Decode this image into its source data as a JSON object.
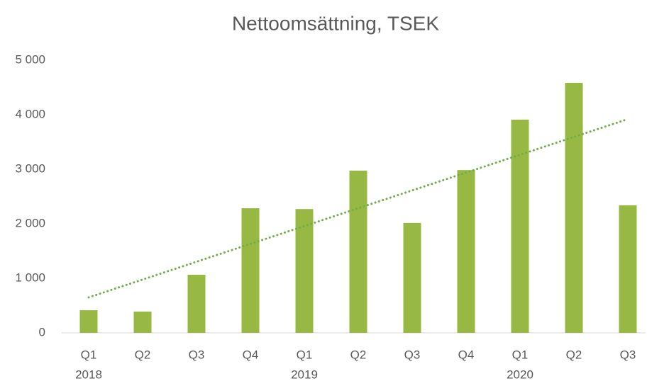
{
  "chart_data": {
    "type": "bar",
    "title": "Nettoomsättning, TSEK",
    "categories": [
      "Q1",
      "Q2",
      "Q3",
      "Q4",
      "Q1",
      "Q2",
      "Q3",
      "Q4",
      "Q1",
      "Q2",
      "Q3"
    ],
    "category_groups": [
      "2018",
      null,
      null,
      null,
      "2019",
      null,
      null,
      null,
      "2020",
      null,
      null
    ],
    "values": [
      415,
      390,
      1065,
      2285,
      2270,
      2975,
      2015,
      2985,
      3910,
      4585,
      2340
    ],
    "color": "#97b944",
    "trendline": {
      "color": "#70ad47",
      "values": [
        650,
        3920
      ]
    },
    "ylim": [
      0,
      5000
    ],
    "yticks": [
      0,
      {
        "value": 1000,
        "label": "1 000"
      },
      {
        "value": 2000,
        "label": "2 000"
      },
      {
        "value": 3000,
        "label": "3 000"
      },
      {
        "value": 4000,
        "label": "4 000"
      },
      {
        "value": 5000,
        "label": "5 000"
      }
    ],
    "grid": false
  }
}
